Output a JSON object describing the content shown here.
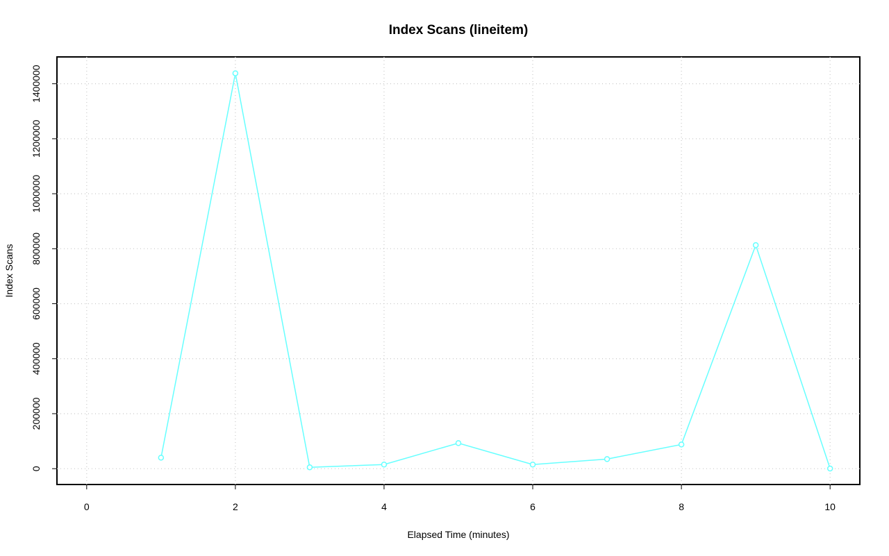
{
  "chart_data": {
    "type": "line",
    "title": "Index Scans (lineitem)",
    "x_label": "Elapsed Time (minutes)",
    "y_label": "Index Scans",
    "x": [
      1,
      2,
      3,
      4,
      5,
      6,
      7,
      8,
      9,
      10
    ],
    "series": [
      {
        "name": "Index Scans",
        "color": "#66ffff",
        "values": [
          40000,
          1438000,
          5000,
          15000,
          93000,
          15000,
          35000,
          88000,
          813000,
          500
        ]
      }
    ],
    "xlim": [
      -0.4,
      10.4
    ],
    "ylim": [
      -57600,
      1497600
    ],
    "xticks": [
      0,
      2,
      4,
      6,
      8,
      10
    ],
    "yticks": [
      0,
      200000,
      400000,
      600000,
      800000,
      1000000,
      1200000,
      1400000
    ],
    "grid": true
  }
}
